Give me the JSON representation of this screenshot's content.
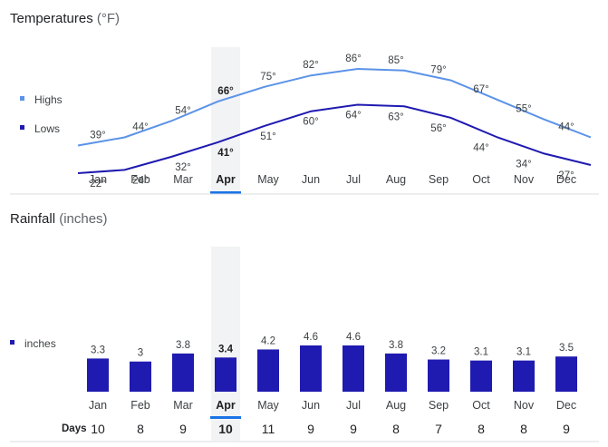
{
  "temperature_section": {
    "title": "Temperatures",
    "unit": "(°F)"
  },
  "rainfall_section": {
    "title": "Rainfall",
    "unit": "(inches)"
  },
  "selected_month": "Apr",
  "chart_data": [
    {
      "type": "line",
      "title": "Temperatures (°F)",
      "categories": [
        "Jan",
        "Feb",
        "Mar",
        "Apr",
        "May",
        "Jun",
        "Jul",
        "Aug",
        "Sep",
        "Oct",
        "Nov",
        "Dec"
      ],
      "series": [
        {
          "name": "Highs",
          "values": [
            39,
            44,
            54,
            66,
            75,
            82,
            86,
            85,
            79,
            67,
            55,
            44
          ],
          "color": "#5b93e8"
        },
        {
          "name": "Lows",
          "values": [
            22,
            24,
            32,
            41,
            51,
            60,
            64,
            63,
            56,
            44,
            34,
            27
          ],
          "color": "#1f1ab0"
        }
      ],
      "value_suffix": "°",
      "legend": "left",
      "grid": false
    },
    {
      "type": "bar",
      "title": "Rainfall (inches)",
      "categories": [
        "Jan",
        "Feb",
        "Mar",
        "Apr",
        "May",
        "Jun",
        "Jul",
        "Aug",
        "Sep",
        "Oct",
        "Nov",
        "Dec"
      ],
      "series": [
        {
          "name": "inches",
          "values": [
            3.3,
            3,
            3.8,
            3.4,
            4.2,
            4.6,
            4.6,
            3.8,
            3.2,
            3.1,
            3.1,
            3.5
          ],
          "color": "#1f1ab0"
        }
      ],
      "legend": "left",
      "grid": false
    }
  ],
  "days_row": {
    "label": "Days",
    "values": [
      10,
      8,
      9,
      10,
      11,
      9,
      9,
      8,
      7,
      8,
      8,
      9
    ]
  }
}
